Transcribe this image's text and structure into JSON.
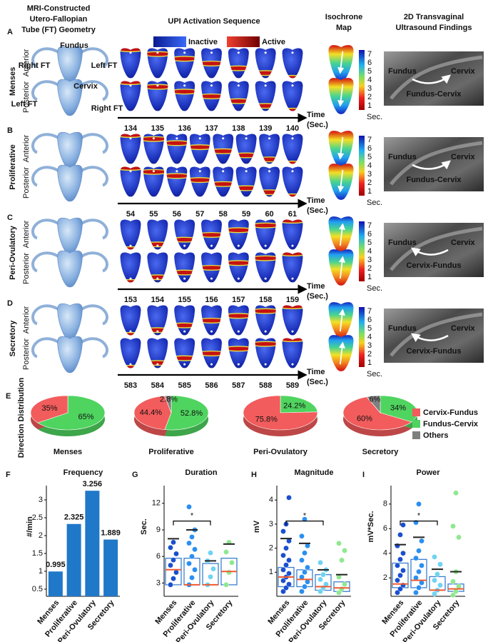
{
  "header": {
    "geometry_title": [
      "MRI-Constructed",
      "Utero-Fallopian",
      "Tube (FT) Geometry"
    ],
    "sequence_title": "UPI Activation Sequence",
    "isochrone_title": [
      "Isochrone",
      "Map"
    ],
    "ultrasound_title": [
      "2D Transvaginal",
      "Ultrasound Findings"
    ]
  },
  "legend": {
    "inactive": "Inactive",
    "active": "Active"
  },
  "geometry_labels": [
    "Fundus",
    "Right FT",
    "Left FT",
    "Cervix",
    "Left FT",
    "Right FT"
  ],
  "colorbar": {
    "ticks": [
      1,
      2,
      3,
      4,
      5,
      6,
      7
    ],
    "unit": "Sec."
  },
  "time_label": "Time",
  "time_unit": "(Sec.)",
  "rows": [
    {
      "letter": "A",
      "phase": "Menses",
      "views": [
        "Anterior",
        "Posterior"
      ],
      "times": [
        134,
        135,
        136,
        137,
        138,
        139,
        140
      ],
      "ultrasound": {
        "fundus": "Fundus",
        "cervix": "Cervix",
        "direction": "Fundus-Cervix"
      }
    },
    {
      "letter": "B",
      "phase": "Proliferative",
      "views": [
        "Anterior",
        "Posterior"
      ],
      "times": [
        54,
        55,
        56,
        57,
        58,
        59,
        60,
        61
      ],
      "ultrasound": {
        "fundus": "Fundus",
        "cervix": "Cervix",
        "direction": "Fundus-Cervix"
      }
    },
    {
      "letter": "C",
      "phase": "Peri-Ovulatory",
      "views": [
        "Anterior",
        "Posterior"
      ],
      "times": [
        153,
        154,
        155,
        156,
        157,
        158,
        159
      ],
      "ultrasound": {
        "fundus": "Fundus",
        "cervix": "Cervix",
        "direction": "Cervix-Fundus"
      }
    },
    {
      "letter": "D",
      "phase": "Secretory",
      "views": [
        "Anterior",
        "Posterior"
      ],
      "times": [
        583,
        584,
        585,
        586,
        587,
        588,
        589
      ],
      "ultrasound": {
        "fundus": "Fundus",
        "cervix": "Cervix",
        "direction": "Cervix-Fundus"
      }
    }
  ],
  "chart_data": [
    {
      "type": "pie",
      "panel": "E",
      "title": "Direction Distribution",
      "categories": [
        "Menses",
        "Proliferative",
        "Peri-Ovulatory",
        "Secretory"
      ],
      "series": [
        {
          "name": "Cervix-Fundus",
          "color": "#f25c5c",
          "values": [
            35,
            44.4,
            75.8,
            60
          ],
          "value_labels": [
            "35%",
            "44.4%",
            "75.8%",
            "60%"
          ]
        },
        {
          "name": "Fundus-Cervix",
          "color": "#4fd45f",
          "values": [
            65,
            52.8,
            24.2,
            34
          ],
          "value_labels": [
            "65%",
            "52.8%",
            "24.2%",
            "34%"
          ]
        },
        {
          "name": "Others",
          "color": "#7f7f7f",
          "values": [
            null,
            2.8,
            null,
            6
          ],
          "value_labels": [
            null,
            "2.8%",
            null,
            "6%"
          ]
        }
      ]
    },
    {
      "type": "bar",
      "panel": "F",
      "title": "Frequency",
      "ylabel": "#/min",
      "color": "#1f78c8",
      "categories": [
        "Menses",
        "Proliferative",
        "Peri-Ovulatory",
        "Secretory"
      ],
      "values": [
        0.995,
        2.325,
        3.256,
        1.889
      ],
      "ylim": [
        0.3,
        3.4
      ],
      "yticks": [
        0.5,
        1,
        1.5,
        2,
        2.5,
        3
      ]
    },
    {
      "type": "box",
      "panel": "G",
      "title": "Duration",
      "ylabel": "Sec.",
      "annotation": "*",
      "categories": [
        "Menses",
        "Proliferative",
        "Peri-Ovulatory",
        "Secretory"
      ],
      "point_colors": [
        "#1a4fcf",
        "#2a8ff0",
        "#6fd3f2",
        "#8fe88f"
      ],
      "q1": [
        2.8,
        2.8,
        2.8,
        2.8
      ],
      "median": [
        4.5,
        2.8,
        2.8,
        4.3
      ],
      "q3": [
        5.8,
        5.8,
        5.2,
        5.8
      ],
      "whisker": [
        8,
        9,
        5.5,
        7.4
      ],
      "points": [
        [
          2.8,
          3.5,
          4.2,
          5,
          5.6,
          6.3,
          7,
          7.6
        ],
        [
          2.8,
          3.6,
          4.5,
          5.2,
          6,
          6.8,
          7.5,
          8.2,
          9,
          11.6
        ],
        [
          2.8,
          3.7,
          4.6,
          5.5,
          6.4
        ],
        [
          2.8,
          4.2,
          5.3,
          6.5,
          7.6
        ]
      ],
      "ylim": [
        1.5,
        14
      ],
      "yticks": [
        3,
        6,
        9,
        12
      ]
    },
    {
      "type": "box",
      "panel": "H",
      "title": "Magnitude",
      "ylabel": "mV",
      "annotation": "*",
      "categories": [
        "Menses",
        "Proliferative",
        "Peri-Ovulatory",
        "Secretory"
      ],
      "point_colors": [
        "#1a4fcf",
        "#2a8ff0",
        "#6fd3f2",
        "#8fe88f"
      ],
      "q1": [
        0.4,
        0.4,
        0.25,
        0.2
      ],
      "median": [
        0.8,
        0.7,
        0.4,
        0.35
      ],
      "q3": [
        1.2,
        1.1,
        0.9,
        0.6
      ],
      "whisker": [
        2.4,
        2.2,
        1.1,
        0.9
      ],
      "points": [
        [
          0.2,
          0.35,
          0.5,
          0.65,
          0.8,
          0.95,
          1.1,
          1.3,
          1.5,
          1.7,
          2,
          2.3,
          2.7,
          3,
          4.1
        ],
        [
          0.2,
          0.4,
          0.6,
          0.8,
          1,
          1.2,
          1.5,
          1.8,
          2.1,
          2.5,
          3.2
        ],
        [
          0.2,
          0.35,
          0.5,
          0.7,
          0.9,
          1.1,
          1.4
        ],
        [
          0.15,
          0.3,
          0.5,
          0.8,
          1.5,
          1.9,
          2.2
        ]
      ],
      "ylim": [
        0,
        4.6
      ],
      "yticks": [
        1,
        2,
        3,
        4
      ]
    },
    {
      "type": "box",
      "panel": "I",
      "title": "Power",
      "ylabel": "mV*Sec.",
      "annotation": "*",
      "categories": [
        "Menses",
        "Proliferative",
        "Peri-Ovulatory",
        "Secretory"
      ],
      "point_colors": [
        "#1a4fcf",
        "#2a8ff0",
        "#6fd3f2",
        "#8fe88f"
      ],
      "q1": [
        1.2,
        1.2,
        1,
        0.9
      ],
      "median": [
        1.5,
        1.8,
        1,
        1.1
      ],
      "q3": [
        3.2,
        3.5,
        2.1,
        1.5
      ],
      "whisker": [
        4.7,
        5.3,
        2.7,
        2.5
      ],
      "points": [
        [
          0.8,
          1.1,
          1.4,
          1.8,
          2.2,
          2.6,
          3,
          3.5,
          4,
          4.6,
          5.5,
          6.3
        ],
        [
          0.8,
          1.2,
          1.6,
          2,
          2.5,
          3,
          3.6,
          4.2,
          5,
          6.5,
          8
        ],
        [
          0.7,
          1,
          1.4,
          1.8,
          2.3,
          3.1,
          3.7
        ],
        [
          0.6,
          0.9,
          1.3,
          1.7,
          2.5,
          5.3,
          6.2,
          8.9
        ]
      ],
      "ylim": [
        0.5,
        9.5
      ],
      "yticks": [
        2,
        4,
        6,
        8
      ]
    }
  ]
}
